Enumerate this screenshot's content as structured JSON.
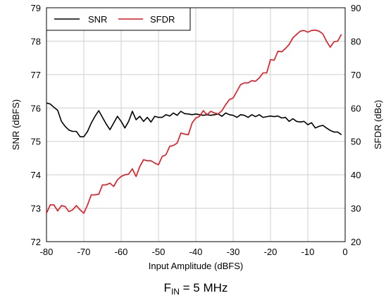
{
  "chart_data": {
    "type": "line",
    "caption": {
      "main": "F",
      "sub": "IN",
      "rest": " = 5 MHz"
    },
    "xlabel": "Input Amplitude (dBFS)",
    "ylabel_left": "SNR (dBFS)",
    "ylabel_right": "SFDR (dBc)",
    "xlim": [
      -80,
      0
    ],
    "ylim_left": [
      72,
      79
    ],
    "ylim_right": [
      20,
      90
    ],
    "xticks": [
      -80,
      -70,
      -60,
      -50,
      -40,
      -30,
      -20,
      -10,
      0
    ],
    "xtick_labels": [
      "-80",
      "-70",
      "-60",
      "-50",
      "-40",
      "-30",
      "-20",
      "-10",
      "0"
    ],
    "yticks_left": [
      72,
      73,
      74,
      75,
      76,
      77,
      78,
      79
    ],
    "ytick_labels_left": [
      "72",
      "73",
      "74",
      "75",
      "76",
      "77",
      "78",
      "79"
    ],
    "yticks_right": [
      20,
      30,
      40,
      50,
      60,
      70,
      80,
      90
    ],
    "ytick_labels_right": [
      "20",
      "30",
      "40",
      "50",
      "60",
      "70",
      "80",
      "90"
    ],
    "grid": true,
    "legend_position": "top-left",
    "series": [
      {
        "name": "SNR",
        "axis": "left",
        "color": "#000000",
        "x": [
          -80,
          -79,
          -78,
          -77,
          -76,
          -75,
          -74,
          -73,
          -72,
          -71,
          -70,
          -69,
          -68,
          -67,
          -66,
          -65,
          -64,
          -63,
          -62,
          -61,
          -60,
          -59,
          -58,
          -57,
          -56,
          -55,
          -54,
          -53,
          -52,
          -51,
          -50,
          -49,
          -48,
          -47,
          -46,
          -45,
          -44,
          -43,
          -42,
          -41,
          -40,
          -39,
          -38,
          -37,
          -36,
          -35,
          -34,
          -33,
          -32,
          -31,
          -30,
          -29,
          -28,
          -27,
          -26,
          -25,
          -24,
          -23,
          -22,
          -21,
          -20,
          -19,
          -18,
          -17,
          -16,
          -15,
          -14,
          -13,
          -12,
          -11,
          -10,
          -9,
          -8,
          -7,
          -6,
          -5,
          -4,
          -3,
          -2,
          -1
        ],
        "values": [
          76.15,
          76.12,
          76.02,
          75.93,
          75.6,
          75.45,
          75.34,
          75.3,
          75.3,
          75.14,
          75.14,
          75.3,
          75.55,
          75.75,
          75.92,
          75.72,
          75.52,
          75.35,
          75.55,
          75.75,
          75.6,
          75.4,
          75.6,
          75.9,
          75.65,
          75.75,
          75.6,
          75.72,
          75.58,
          75.75,
          75.72,
          75.72,
          75.8,
          75.76,
          75.85,
          75.78,
          75.9,
          75.83,
          75.82,
          75.8,
          75.82,
          75.8,
          75.78,
          75.8,
          75.78,
          75.8,
          75.82,
          75.75,
          75.85,
          75.8,
          75.78,
          75.72,
          75.8,
          75.78,
          75.72,
          75.8,
          75.74,
          75.8,
          75.72,
          75.74,
          75.76,
          75.74,
          75.76,
          75.7,
          75.72,
          75.6,
          75.68,
          75.6,
          75.58,
          75.6,
          75.5,
          75.56,
          75.4,
          75.45,
          75.48,
          75.4,
          75.33,
          75.28,
          75.28,
          75.2
        ]
      },
      {
        "name": "SFDR",
        "axis": "right",
        "color": "#e8141e",
        "x": [
          -80,
          -79,
          -78,
          -77,
          -76,
          -75,
          -74,
          -73,
          -72,
          -71,
          -70,
          -69,
          -68,
          -67,
          -66,
          -65,
          -64,
          -63,
          -62,
          -61,
          -60,
          -59,
          -58,
          -57,
          -56,
          -55,
          -54,
          -53,
          -52,
          -51,
          -50,
          -49,
          -48,
          -47,
          -46,
          -45,
          -44,
          -43,
          -42,
          -41,
          -40,
          -39,
          -38,
          -37,
          -36,
          -35,
          -34,
          -33,
          -32,
          -31,
          -30,
          -29,
          -28,
          -27,
          -26,
          -25,
          -24,
          -23,
          -22,
          -21,
          -20,
          -19,
          -18,
          -17,
          -16,
          -15,
          -14,
          -13,
          -12,
          -11,
          -10,
          -9,
          -8,
          -7,
          -6,
          -5,
          -4,
          -3,
          -2,
          -1
        ],
        "values": [
          28.5,
          31,
          31,
          29.2,
          30.8,
          30.5,
          29,
          29.5,
          30.8,
          29.5,
          28.5,
          31,
          34,
          34,
          34.2,
          37,
          37,
          37.5,
          36.5,
          38.5,
          39.5,
          40,
          40.2,
          41.8,
          39.5,
          42.5,
          44.5,
          44.2,
          44.2,
          43.5,
          43,
          45.5,
          46,
          48.5,
          48.8,
          49.5,
          52.5,
          52.2,
          52,
          55.5,
          57,
          57.5,
          59.2,
          58,
          59,
          58.5,
          58.2,
          59.2,
          61,
          62.5,
          63,
          65,
          67,
          67.5,
          67.5,
          68.2,
          68,
          69,
          70.5,
          70.5,
          74.5,
          74.3,
          77,
          76.8,
          77.8,
          79,
          81,
          82,
          83,
          83.2,
          82.7,
          83.2,
          83.3,
          83,
          82.2,
          80,
          78.2,
          79.8,
          80,
          82
        ]
      }
    ]
  }
}
